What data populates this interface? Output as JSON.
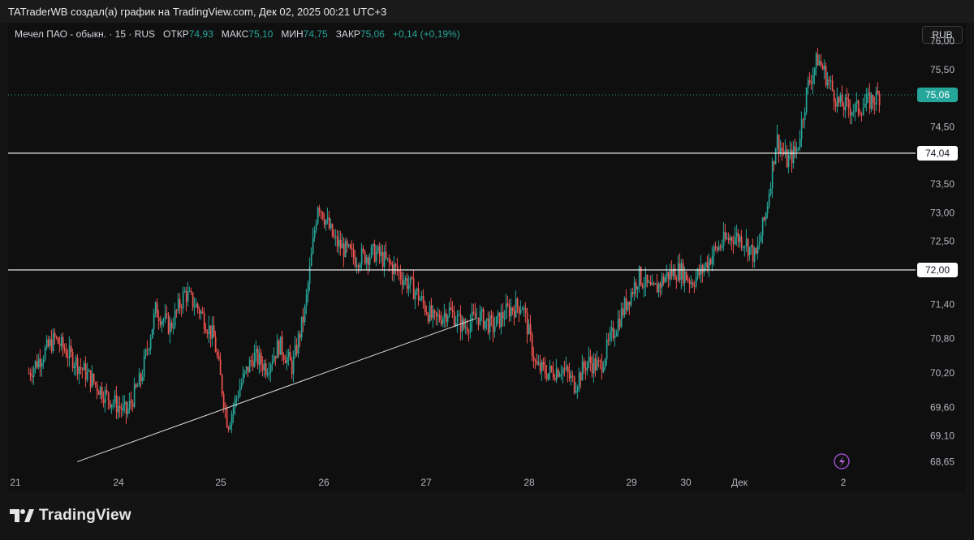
{
  "header": {
    "credit": "TATraderWB создал(а) график на TradingView.com, Дек 02, 2025 00:21 UTC+3"
  },
  "legend": {
    "symbol": "Мечел ПАО - обыкн. · 15 · RUS",
    "open_label": "ОТКР",
    "open_value": "74,93",
    "high_label": "МАКС",
    "high_value": "75,10",
    "low_label": "МИН",
    "low_value": "74,75",
    "close_label": "ЗАКР",
    "close_value": "75,06",
    "change": "+0,14 (+0,19%)"
  },
  "currency_button": "RUB",
  "brand": "TradingView",
  "colors": {
    "up": "#26a69a",
    "down": "#ef5350",
    "price_label_bg": "#26a69a",
    "level_line": "#ffffff",
    "background": "#0f0f0f"
  },
  "chart_data": {
    "type": "candlestick",
    "symbol": "Мечел ПАО - обыкн.",
    "interval": "15",
    "currency": "RUB",
    "y_ticks": [
      "76,00",
      "75,50",
      "75,06",
      "74,50",
      "74,04",
      "73,50",
      "73,00",
      "72,50",
      "72,00",
      "71,40",
      "70,80",
      "70,20",
      "69,60",
      "69,10",
      "68,65"
    ],
    "y_range": [
      68.5,
      76.15
    ],
    "x_ticks": [
      "21",
      "24",
      "25",
      "26",
      "27",
      "28",
      "29",
      "30",
      "Дек",
      "2"
    ],
    "last_price": 75.06,
    "last_price_label": "75,06",
    "horizontal_levels": [
      {
        "value": 74.04,
        "label": "74,04"
      },
      {
        "value": 72.0,
        "label": "72,00"
      }
    ],
    "trendline": {
      "from": {
        "x": "21",
        "y": 68.65
      },
      "to": {
        "x": "27",
        "y": 71.15
      }
    },
    "price_path": [
      {
        "x": "21",
        "y": 70.2
      },
      {
        "x": "21",
        "y": 70.8
      },
      {
        "x": "21",
        "y": 70.3
      },
      {
        "x": "21",
        "y": 69.8
      },
      {
        "x": "24",
        "y": 69.5
      },
      {
        "x": "24",
        "y": 70.1
      },
      {
        "x": "24",
        "y": 71.3
      },
      {
        "x": "24",
        "y": 71.0
      },
      {
        "x": "24",
        "y": 71.6
      },
      {
        "x": "24",
        "y": 71.3
      },
      {
        "x": "24",
        "y": 70.8
      },
      {
        "x": "25",
        "y": 69.3
      },
      {
        "x": "25",
        "y": 70.0
      },
      {
        "x": "25",
        "y": 70.5
      },
      {
        "x": "25",
        "y": 70.3
      },
      {
        "x": "25",
        "y": 70.7
      },
      {
        "x": "25",
        "y": 70.3
      },
      {
        "x": "25",
        "y": 71.3
      },
      {
        "x": "25",
        "y": 73.2
      },
      {
        "x": "26",
        "y": 72.5
      },
      {
        "x": "26",
        "y": 72.2
      },
      {
        "x": "26",
        "y": 72.3
      },
      {
        "x": "26",
        "y": 72.0
      },
      {
        "x": "26",
        "y": 71.6
      },
      {
        "x": "27",
        "y": 71.1
      },
      {
        "x": "27",
        "y": 71.3
      },
      {
        "x": "27",
        "y": 71.0
      },
      {
        "x": "27",
        "y": 71.2
      },
      {
        "x": "27",
        "y": 71.0
      },
      {
        "x": "27",
        "y": 71.3
      },
      {
        "x": "27",
        "y": 71.4
      },
      {
        "x": "28",
        "y": 70.3
      },
      {
        "x": "28",
        "y": 70.2
      },
      {
        "x": "28",
        "y": 70.3
      },
      {
        "x": "28",
        "y": 70.0
      },
      {
        "x": "28",
        "y": 70.4
      },
      {
        "x": "28",
        "y": 70.3
      },
      {
        "x": "28",
        "y": 70.9
      },
      {
        "x": "28",
        "y": 71.4
      },
      {
        "x": "29",
        "y": 71.9
      },
      {
        "x": "29",
        "y": 71.6
      },
      {
        "x": "29",
        "y": 71.9
      },
      {
        "x": "29",
        "y": 72.0
      },
      {
        "x": "30",
        "y": 71.8
      },
      {
        "x": "30",
        "y": 72.0
      },
      {
        "x": "30",
        "y": 72.3
      },
      {
        "x": "30",
        "y": 72.5
      },
      {
        "x": "30",
        "y": 72.6
      },
      {
        "x": "Дек",
        "y": 72.5
      },
      {
        "x": "Дек",
        "y": 72.2
      },
      {
        "x": "Дек",
        "y": 73.0
      },
      {
        "x": "Дек",
        "y": 74.3
      },
      {
        "x": "Дек",
        "y": 73.9
      },
      {
        "x": "Дек",
        "y": 74.1
      },
      {
        "x": "Дек",
        "y": 75.2
      },
      {
        "x": "Дек",
        "y": 75.7
      },
      {
        "x": "Дек",
        "y": 75.3
      },
      {
        "x": "Дек",
        "y": 74.9
      },
      {
        "x": "2",
        "y": 74.8
      },
      {
        "x": "2",
        "y": 75.06
      }
    ]
  }
}
